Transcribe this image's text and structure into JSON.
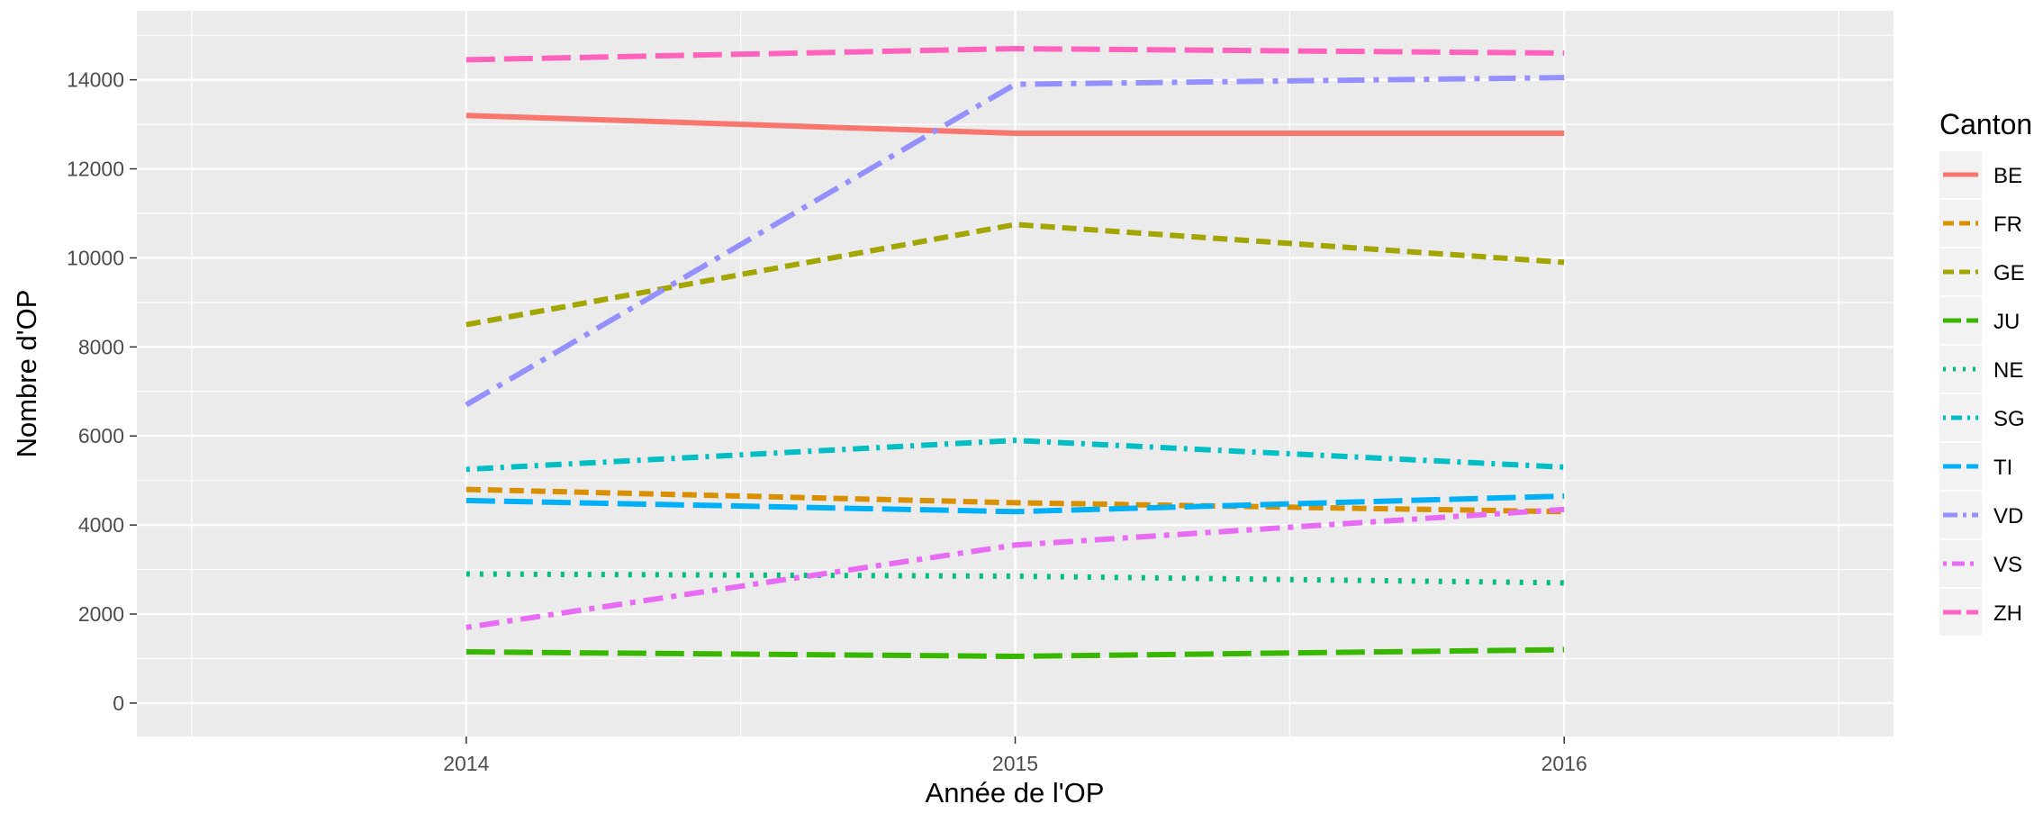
{
  "chart_data": {
    "type": "line",
    "title": "",
    "xlabel": "Année de l'OP",
    "ylabel": "Nombre d'OP",
    "x": [
      2014,
      2015,
      2016
    ],
    "x_ticks": [
      "2014",
      "2015",
      "2016"
    ],
    "y_ticks": [
      "0",
      "2000",
      "4000",
      "6000",
      "8000",
      "10000",
      "12000",
      "14000"
    ],
    "xlim": [
      2013.4,
      2016.6
    ],
    "ylim": [
      -750,
      15550
    ],
    "grid": true,
    "legend": {
      "title": "Canton",
      "placement": "right"
    },
    "series": [
      {
        "name": "BE",
        "color": "#F8766D",
        "dash": "solid",
        "values": [
          13200,
          12800,
          12800
        ]
      },
      {
        "name": "FR",
        "color": "#D89000",
        "dash": "dashed",
        "values": [
          4800,
          4500,
          4300
        ]
      },
      {
        "name": "GE",
        "color": "#A3A500",
        "dash": "dashed",
        "values": [
          8500,
          10750,
          9900
        ]
      },
      {
        "name": "JU",
        "color": "#39B600",
        "dash": "longdash",
        "values": [
          1150,
          1050,
          1200
        ]
      },
      {
        "name": "NE",
        "color": "#00BF7D",
        "dash": "dotted",
        "values": [
          2900,
          2850,
          2700
        ]
      },
      {
        "name": "SG",
        "color": "#00BFC4",
        "dash": "dotdash",
        "values": [
          5250,
          5900,
          5300
        ]
      },
      {
        "name": "TI",
        "color": "#00B0F6",
        "dash": "longdash",
        "values": [
          4550,
          4300,
          4650
        ]
      },
      {
        "name": "VD",
        "color": "#9590FF",
        "dash": "longdash-dot",
        "values": [
          6700,
          13900,
          14050
        ]
      },
      {
        "name": "VS",
        "color": "#E76BF3",
        "dash": "dot-longdash",
        "values": [
          1700,
          3550,
          4350
        ]
      },
      {
        "name": "ZH",
        "color": "#FF62BC",
        "dash": "longdash",
        "values": [
          14450,
          14700,
          14600
        ]
      }
    ]
  }
}
